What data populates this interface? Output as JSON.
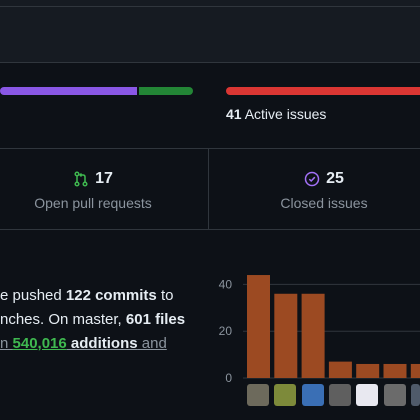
{
  "activity_bar": {
    "segments": [
      {
        "color": "#8957e5",
        "fraction": 0.71
      },
      {
        "color": "#238636",
        "fraction": 0.29
      }
    ]
  },
  "issues_bar": {
    "color": "#da3633"
  },
  "issues_summary": {
    "count": "41",
    "label": " Active issues"
  },
  "stats": {
    "pull_requests": {
      "count": "17",
      "label": "Open pull requests",
      "icon": "git-pull-request-icon"
    },
    "closed_issues": {
      "count": "25",
      "label": "Closed issues",
      "icon": "issue-closed-icon"
    }
  },
  "commit_summary": {
    "line1_a": "e pushed ",
    "line1_b": "122 commits",
    "line1_c": " to",
    "line2_a": "nches. On master, ",
    "line2_b": "601 files",
    "line3_a": "n ",
    "line3_b": "540,016",
    "line3_c": " additions",
    "line3_d": " and"
  },
  "chart_data": {
    "type": "bar",
    "bar_color": "#9c4a22",
    "y_ticks": [
      "40",
      "20",
      "0"
    ],
    "ylim": [
      0,
      50
    ],
    "values": [
      44,
      36,
      36,
      7,
      6,
      6,
      6
    ],
    "xlabel": "",
    "ylabel": ""
  },
  "contributors": [
    {
      "name": "contributor-avatar-1",
      "color": "#6d6a5c"
    },
    {
      "name": "contributor-avatar-2",
      "color": "#7d8a3a"
    },
    {
      "name": "contributor-avatar-3",
      "color": "#3a6fb5"
    },
    {
      "name": "contributor-avatar-4",
      "color": "#5f5f5f"
    },
    {
      "name": "contributor-avatar-5",
      "color": "#e8e8f0"
    },
    {
      "name": "contributor-avatar-6",
      "color": "#6b6b6b"
    },
    {
      "name": "contributor-avatar-7",
      "color": "#4f5a6a"
    }
  ]
}
